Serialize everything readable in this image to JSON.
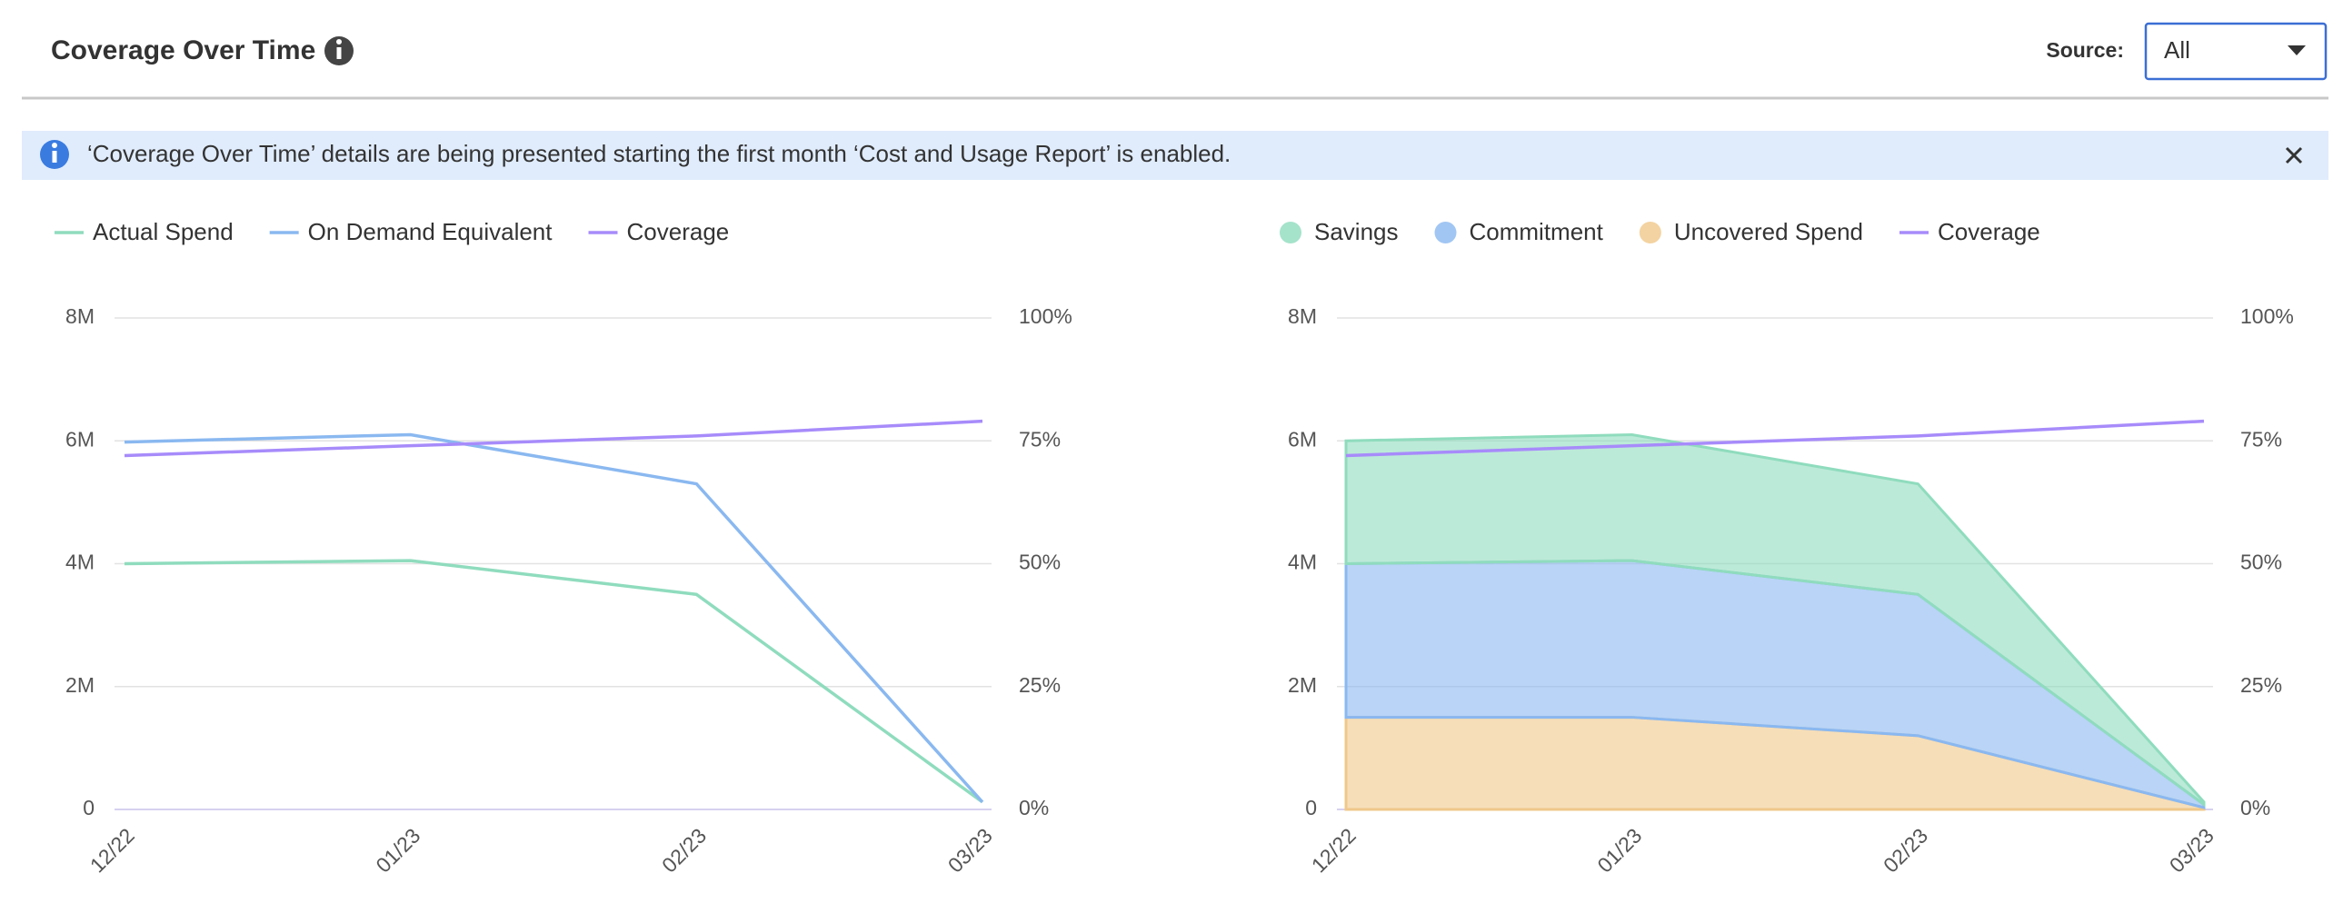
{
  "header": {
    "title": "Coverage Over Time",
    "source_label": "Source:",
    "source_value": "All"
  },
  "banner": {
    "text": "‘Coverage Over Time’ details are being presented starting the first month ‘Cost and Usage Report’ is enabled."
  },
  "chart_data": [
    {
      "type": "line",
      "categories": [
        "12/22",
        "01/23",
        "02/23",
        "03/23"
      ],
      "series": [
        {
          "name": "Actual Spend",
          "color": "#8fdcbe",
          "values": [
            4000000,
            4050000,
            3500000,
            120000
          ]
        },
        {
          "name": "On Demand Equivalent",
          "color": "#8ab8f0",
          "values": [
            5980000,
            6100000,
            5300000,
            120000
          ]
        },
        {
          "name": "Coverage",
          "color": "#a78bfa",
          "axis": "y2",
          "values": [
            72,
            74,
            76,
            79
          ]
        }
      ],
      "ylim": [
        0,
        8000000
      ],
      "yticks": [
        0,
        {
          "value": 2000000,
          "label": "2M"
        },
        {
          "value": 4000000,
          "label": "4M"
        },
        {
          "value": 6000000,
          "label": "6M"
        },
        {
          "value": 8000000,
          "label": "8M"
        }
      ],
      "y2lim": [
        0,
        100
      ],
      "y2ticks": [
        {
          "value": 0,
          "label": "0%"
        },
        {
          "value": 25,
          "label": "25%"
        },
        {
          "value": 50,
          "label": "50%"
        },
        {
          "value": 75,
          "label": "75%"
        },
        {
          "value": 100,
          "label": "100%"
        }
      ],
      "grid": true
    },
    {
      "type": "area",
      "categories": [
        "12/22",
        "01/23",
        "02/23",
        "03/23"
      ],
      "series": [
        {
          "name": "Savings",
          "color": "#8fdcbe",
          "values": [
            2000000,
            2050000,
            1800000,
            40000
          ]
        },
        {
          "name": "Commitment",
          "color": "#8ab8f0",
          "values": [
            2500000,
            2550000,
            2300000,
            50000
          ]
        },
        {
          "name": "Uncovered Spend",
          "color": "#f0c88a",
          "values": [
            1500000,
            1500000,
            1200000,
            30000
          ]
        },
        {
          "name": "Coverage",
          "color": "#a78bfa",
          "axis": "y2",
          "values": [
            72,
            74,
            76,
            79
          ]
        }
      ],
      "stacked": true,
      "ylim": [
        0,
        8000000
      ],
      "yticks": [
        0,
        {
          "value": 2000000,
          "label": "2M"
        },
        {
          "value": 4000000,
          "label": "4M"
        },
        {
          "value": 6000000,
          "label": "6M"
        },
        {
          "value": 8000000,
          "label": "8M"
        }
      ],
      "y2lim": [
        0,
        100
      ],
      "y2ticks": [
        {
          "value": 0,
          "label": "0%"
        },
        {
          "value": 25,
          "label": "25%"
        },
        {
          "value": 50,
          "label": "50%"
        },
        {
          "value": 75,
          "label": "75%"
        },
        {
          "value": 100,
          "label": "100%"
        }
      ],
      "grid": true
    }
  ]
}
